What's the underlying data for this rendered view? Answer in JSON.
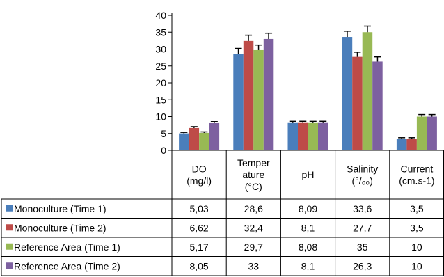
{
  "chart_data": {
    "type": "bar",
    "title": "",
    "xlabel": "",
    "ylabel": "",
    "ylim": [
      0,
      40
    ],
    "yticks": [
      "0",
      "5",
      "10",
      "15",
      "20",
      "25",
      "30",
      "35",
      "40"
    ],
    "categories": [
      [
        "DO",
        "(mg/l)"
      ],
      [
        "Temper",
        "ature",
        "(°C)"
      ],
      [
        "pH"
      ],
      [
        "Salinity",
        "(°/₀₀)"
      ],
      [
        "Current",
        "(cm.s-1)"
      ]
    ],
    "series": [
      {
        "name": "Monoculture (Time 1)",
        "color": "#4A7EBB",
        "values": [
          5.03,
          28.6,
          8.09,
          33.6,
          3.5
        ],
        "labels": [
          "5,03",
          "28,6",
          "8,09",
          "33,6",
          "3,5"
        ],
        "errors": [
          0.3,
          1.6,
          0.5,
          1.7,
          0.25
        ]
      },
      {
        "name": "Monoculture (Time 2)",
        "color": "#BE4B48",
        "values": [
          6.62,
          32.4,
          8.1,
          27.7,
          3.5
        ],
        "labels": [
          "6,62",
          "32,4",
          "8,1",
          "27,7",
          "3,5"
        ],
        "errors": [
          0.4,
          1.7,
          0.5,
          1.4,
          0.25
        ]
      },
      {
        "name": "Reference Area (Time 1)",
        "color": "#98B954",
        "values": [
          5.17,
          29.7,
          8.08,
          35,
          10
        ],
        "labels": [
          "5,17",
          "29,7",
          "8,08",
          "35",
          "10"
        ],
        "errors": [
          0.3,
          1.5,
          0.5,
          1.8,
          0.6
        ]
      },
      {
        "name": "Reference Area (Time 2)",
        "color": "#7D60A0",
        "values": [
          8.05,
          33,
          8.1,
          26.3,
          10
        ],
        "labels": [
          "8,05",
          "33",
          "8,1",
          "26,3",
          "10"
        ],
        "errors": [
          0.45,
          1.7,
          0.5,
          1.4,
          0.6
        ]
      }
    ]
  }
}
